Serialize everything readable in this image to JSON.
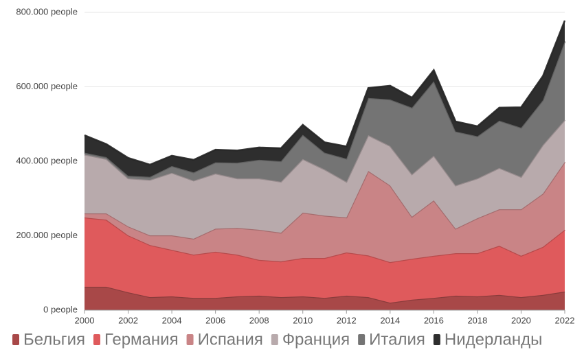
{
  "chart_data": {
    "type": "stacked-area",
    "x": [
      2000,
      2001,
      2002,
      2003,
      2004,
      2005,
      2006,
      2007,
      2008,
      2009,
      2010,
      2011,
      2012,
      2013,
      2014,
      2015,
      2016,
      2017,
      2018,
      2019,
      2020,
      2021,
      2022
    ],
    "xlim": [
      2000,
      2022
    ],
    "xticks": [
      2000,
      2002,
      2004,
      2006,
      2008,
      2010,
      2012,
      2014,
      2016,
      2018,
      2020,
      2022
    ],
    "ylim": [
      0,
      800000
    ],
    "yticks": [
      {
        "value": 0,
        "label": "0 people"
      },
      {
        "value": 200000,
        "label": "200.000 people"
      },
      {
        "value": 400000,
        "label": "400.000 people"
      },
      {
        "value": 600000,
        "label": "600.000 people"
      },
      {
        "value": 800000,
        "label": "800.000 people"
      }
    ],
    "grid": true,
    "legend": "bottom",
    "series": [
      {
        "name": "Бельгия",
        "color": "#a84848",
        "values": [
          63000,
          63000,
          48000,
          35000,
          37000,
          33000,
          33000,
          37000,
          39000,
          35000,
          37000,
          33000,
          39000,
          35000,
          20000,
          28000,
          33000,
          39000,
          37000,
          41000,
          35000,
          41000,
          50000
        ]
      },
      {
        "name": "Германия",
        "color": "#df5a5c",
        "values": [
          186000,
          180000,
          153000,
          140000,
          125000,
          116000,
          124000,
          112000,
          96000,
          96000,
          103000,
          107000,
          116000,
          112000,
          109000,
          110000,
          113000,
          114000,
          116000,
          132000,
          111000,
          129000,
          166000
        ]
      },
      {
        "name": "Испания",
        "color": "#c98486",
        "values": [
          11000,
          17000,
          24000,
          26000,
          39000,
          43000,
          62000,
          72000,
          81000,
          77000,
          122000,
          114000,
          94000,
          227000,
          206000,
          113000,
          149000,
          66000,
          94000,
          98000,
          125000,
          143000,
          182000
        ]
      },
      {
        "name": "Франция",
        "color": "#b8aaac",
        "values": [
          158000,
          146000,
          129000,
          149000,
          168000,
          156000,
          148000,
          133000,
          138000,
          137000,
          144000,
          124000,
          96000,
          96000,
          106000,
          114000,
          120000,
          116000,
          107000,
          111000,
          87000,
          131000,
          113000
        ]
      },
      {
        "name": "Италия",
        "color": "#747474",
        "values": [
          5000,
          5000,
          7000,
          8000,
          18000,
          22000,
          30000,
          42000,
          50000,
          55000,
          65000,
          45000,
          62000,
          100000,
          125000,
          179000,
          200000,
          145000,
          113000,
          127000,
          132000,
          120000,
          211000
        ]
      },
      {
        "name": "Нидерланды",
        "color": "#2e2e2e",
        "values": [
          47000,
          35000,
          48000,
          33000,
          28000,
          34000,
          34000,
          33000,
          33000,
          35000,
          27000,
          28000,
          33000,
          27000,
          37000,
          27000,
          30000,
          27000,
          27000,
          35000,
          55000,
          65000,
          56000
        ]
      }
    ]
  }
}
